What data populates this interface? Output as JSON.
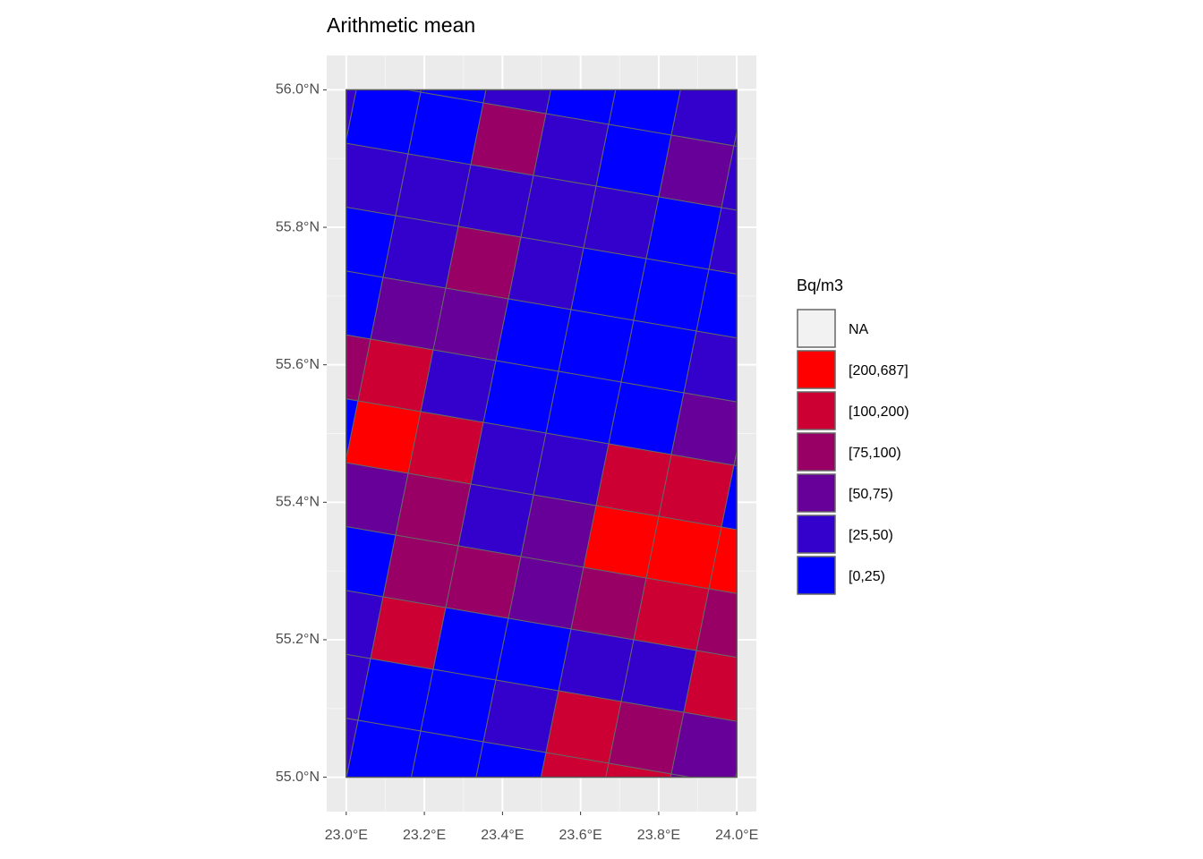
{
  "chart_data": {
    "type": "map",
    "title": "Arithmetic mean",
    "xlim": [
      22.95,
      24.05
    ],
    "ylim": [
      54.95,
      56.05
    ],
    "xticks": [
      {
        "value": 23.0,
        "label": "23.0°E"
      },
      {
        "value": 23.2,
        "label": "23.2°E"
      },
      {
        "value": 23.4,
        "label": "23.4°E"
      },
      {
        "value": 23.6,
        "label": "23.6°E"
      },
      {
        "value": 23.8,
        "label": "23.8°E"
      },
      {
        "value": 24.0,
        "label": "24.0°E"
      }
    ],
    "yticks": [
      {
        "value": 55.0,
        "label": "55.0°N"
      },
      {
        "value": 55.2,
        "label": "55.2°N"
      },
      {
        "value": 55.4,
        "label": "55.4°N"
      },
      {
        "value": 55.6,
        "label": "55.6°N"
      },
      {
        "value": 55.8,
        "label": "55.8°N"
      },
      {
        "value": 56.0,
        "label": "56.0°N"
      }
    ],
    "grid": true,
    "legend": {
      "title": "Bq/m3",
      "position": "right",
      "classes": [
        "NA",
        "[200,687]",
        "[100,200)",
        "[75,100)",
        "[50,75)",
        "[25,50)",
        "[0,25)"
      ],
      "colors": [
        "#f2f2f2",
        "#ff0000",
        "#cc0033",
        "#990066",
        "#660099",
        "#3300cc",
        "#0000ff"
      ]
    },
    "cells": [
      [
        6,
        6,
        6,
        5,
        6,
        6,
        5,
        5,
        5
      ],
      [
        5,
        6,
        6,
        3,
        5,
        6,
        4,
        5,
        5
      ],
      [
        5,
        5,
        5,
        5,
        5,
        5,
        6,
        5,
        5
      ],
      [
        6,
        6,
        5,
        3,
        5,
        6,
        6,
        6,
        6
      ],
      [
        6,
        6,
        4,
        4,
        6,
        6,
        6,
        5,
        5
      ],
      [
        3,
        3,
        2,
        5,
        6,
        6,
        6,
        4,
        4
      ],
      [
        6,
        6,
        1,
        2,
        5,
        5,
        2,
        2,
        6
      ],
      [
        0,
        0,
        4,
        3,
        5,
        4,
        1,
        1,
        1
      ],
      [
        0,
        6,
        6,
        3,
        3,
        4,
        3,
        2,
        3
      ],
      [
        5,
        5,
        5,
        2,
        6,
        6,
        5,
        5,
        2
      ],
      [
        5,
        5,
        5,
        6,
        6,
        5,
        2,
        3,
        4
      ],
      [
        5,
        5,
        5,
        6,
        6,
        6,
        2,
        2,
        4
      ]
    ]
  }
}
